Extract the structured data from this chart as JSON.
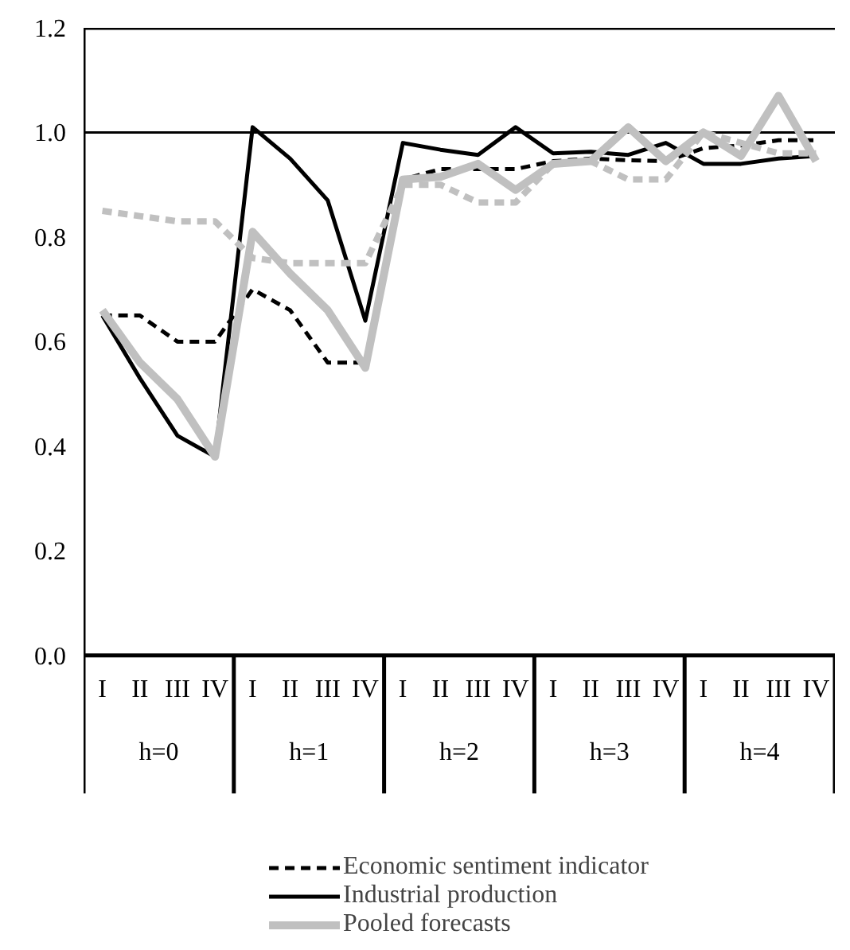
{
  "chart_data": {
    "type": "line",
    "categories": [
      "I",
      "II",
      "III",
      "IV",
      "I",
      "II",
      "III",
      "IV",
      "I",
      "II",
      "III",
      "IV",
      "I",
      "II",
      "III",
      "IV",
      "I",
      "II",
      "III",
      "IV"
    ],
    "annotations": [
      "h=0",
      "h=1",
      "h=2",
      "h=3",
      "h=4"
    ],
    "ylim": [
      0,
      1.2
    ],
    "yticks": [
      {
        "value": 0,
        "label": "0.0"
      },
      {
        "value": 0.2,
        "label": "0.2"
      },
      {
        "value": 0.4,
        "label": "0.4"
      },
      {
        "value": 0.6,
        "label": "0.6"
      },
      {
        "value": 0.8,
        "label": "0.8"
      },
      {
        "value": 1,
        "label": "1.0"
      },
      {
        "value": 1.2,
        "label": "1.2"
      }
    ],
    "ref_lines": [
      {
        "axis": "y",
        "value": 1,
        "color": "#000000"
      }
    ],
    "grid": false,
    "legend": "bottom",
    "marker": "none",
    "series": [
      {
        "name": "Economic sentiment indicator",
        "color": "#000000",
        "line_style": "dashed",
        "values": [
          0.65,
          0.65,
          0.6,
          0.6,
          0.7,
          0.66,
          0.56,
          0.56,
          0.91,
          0.93,
          0.93,
          0.93,
          0.945,
          0.95,
          0.947,
          0.945,
          0.97,
          0.975,
          0.985,
          0.985
        ]
      },
      {
        "name": "Industrial production",
        "color": "#000000",
        "line_style": "solid",
        "values": [
          0.65,
          0.53,
          0.42,
          0.38,
          1.01,
          0.95,
          0.87,
          0.64,
          0.98,
          0.967,
          0.957,
          1.01,
          0.96,
          0.963,
          0.957,
          0.98,
          0.94,
          0.94,
          0.95,
          0.955
        ]
      },
      {
        "color": "#c0c0c0",
        "line_style": "dashed",
        "values": [
          0.85,
          0.84,
          0.83,
          0.83,
          0.76,
          0.75,
          0.75,
          0.75,
          0.9,
          0.9,
          0.866,
          0.866,
          0.94,
          0.945,
          0.91,
          0.91,
          1.0,
          0.98,
          0.96,
          0.96
        ]
      },
      {
        "name": "Pooled forecasts",
        "color": "#c0c0c0",
        "line_style": "solid",
        "values": [
          0.66,
          0.56,
          0.49,
          0.38,
          0.81,
          0.73,
          0.66,
          0.55,
          0.91,
          0.915,
          0.94,
          0.89,
          0.94,
          0.945,
          1.01,
          0.945,
          1.0,
          0.955,
          1.07,
          0.945
        ]
      }
    ]
  }
}
